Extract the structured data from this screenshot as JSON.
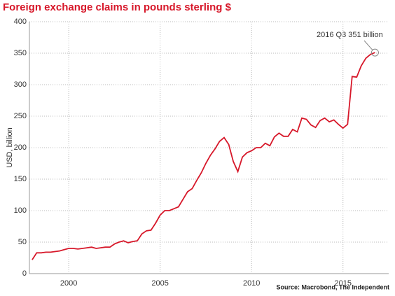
{
  "chart_data": {
    "type": "line",
    "title": "Foreign exchange claims in pounds sterling $",
    "y_label": "USD, billion",
    "source": "Source: Macrobond, The Independent",
    "annotation": "2016 Q3 351 billion",
    "x": [
      1998,
      1998.25,
      1998.5,
      1998.75,
      1999,
      1999.25,
      1999.5,
      1999.75,
      2000,
      2000.25,
      2000.5,
      2000.75,
      2001,
      2001.25,
      2001.5,
      2001.75,
      2002,
      2002.25,
      2002.5,
      2002.75,
      2003,
      2003.25,
      2003.5,
      2003.75,
      2004,
      2004.25,
      2004.5,
      2004.75,
      2005,
      2005.25,
      2005.5,
      2005.75,
      2006,
      2006.25,
      2006.5,
      2006.75,
      2007,
      2007.25,
      2007.5,
      2007.75,
      2008,
      2008.25,
      2008.5,
      2008.75,
      2009,
      2009.25,
      2009.5,
      2009.75,
      2010,
      2010.25,
      2010.5,
      2010.75,
      2011,
      2011.25,
      2011.5,
      2011.75,
      2012,
      2012.25,
      2012.5,
      2012.75,
      2013,
      2013.25,
      2013.5,
      2013.75,
      2014,
      2014.25,
      2014.5,
      2014.75,
      2015,
      2015.25,
      2015.5,
      2015.75,
      2016,
      2016.25,
      2016.5,
      2016.75
    ],
    "series": [
      {
        "name": "Foreign exchange claims",
        "color": "#d7182a",
        "values": [
          22,
          33,
          33,
          34,
          34,
          35,
          36,
          38,
          40,
          40,
          39,
          40,
          41,
          42,
          40,
          41,
          42,
          42,
          47,
          50,
          52,
          49,
          51,
          52,
          63,
          68,
          69,
          80,
          93,
          100,
          100,
          103,
          106,
          118,
          130,
          135,
          148,
          160,
          175,
          188,
          198,
          210,
          216,
          205,
          178,
          162,
          185,
          192,
          195,
          200,
          200,
          207,
          203,
          217,
          223,
          218,
          218,
          229,
          225,
          247,
          245,
          236,
          232,
          243,
          247,
          241,
          244,
          237,
          231,
          237,
          313,
          312,
          330,
          342,
          348,
          351
        ]
      }
    ],
    "xlim": [
      1997.85,
      2017.5
    ],
    "xticks": [
      2000,
      2005,
      2010,
      2015
    ],
    "ylim": [
      0,
      400
    ],
    "yticks": [
      0,
      50,
      100,
      150,
      200,
      250,
      300,
      350,
      400
    ],
    "grid": true
  }
}
